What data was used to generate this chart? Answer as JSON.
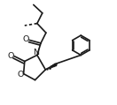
{
  "bg_color": "#ffffff",
  "line_color": "#1a1a1a",
  "lw": 1.2,
  "doff": 0.025,
  "figsize": [
    1.32,
    1.19
  ],
  "dpi": 100,
  "xlim": [
    0,
    1
  ],
  "ylim": [
    0,
    1
  ]
}
